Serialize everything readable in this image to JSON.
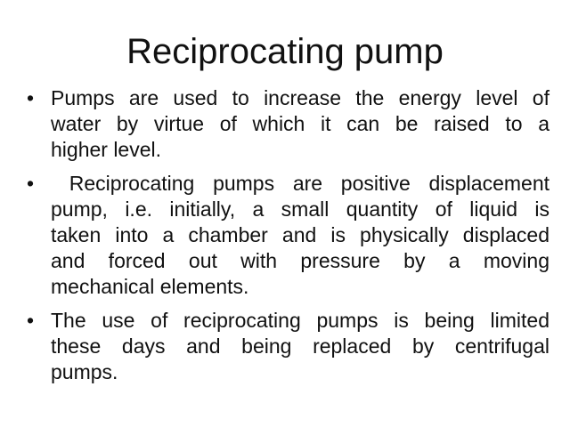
{
  "slide": {
    "title": "Reciprocating pump",
    "bullet_glyph": "•",
    "colors": {
      "text": "#111111",
      "background": "#ffffff"
    },
    "bullets": [
      {
        "lines": [
          "Pumps are used to increase the energy level of",
          "water by virtue of which it can be raised to a",
          "higher level."
        ]
      },
      {
        "lines": [
          " Reciprocating pumps are positive displacement",
          "pump, i.e. initially, a small quantity of liquid is",
          "taken into a chamber and is physically displaced",
          "and forced out with pressure by a moving",
          "mechanical elements."
        ]
      },
      {
        "lines": [
          "The use of reciprocating pumps is being limited",
          "these days and being replaced by centrifugal",
          "pumps."
        ]
      }
    ]
  }
}
